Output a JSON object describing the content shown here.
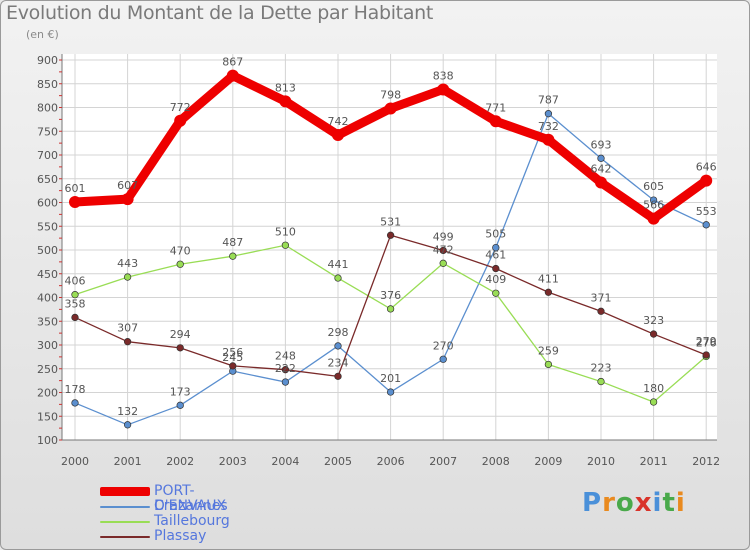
{
  "title": "Evolution du Montant de la Dette par Habitant",
  "subtitle": "(en €)",
  "logo_text": "Proxiti",
  "colors": {
    "port_denvaux": "#ee0000",
    "crazannes": "#5b8fcf",
    "taillebourg": "#99dd55",
    "plassay": "#7a2a2a",
    "legend_text": "#5577dd"
  },
  "chart_data": {
    "type": "line",
    "title": "Evolution du Montant de la Dette par Habitant",
    "ylabel": "(en €)",
    "xlabel": "",
    "ylim": [
      100,
      900
    ],
    "grid": true,
    "categories": [
      "2000",
      "2001",
      "2002",
      "2003",
      "2004",
      "2005",
      "2006",
      "2007",
      "2008",
      "2009",
      "2010",
      "2011",
      "2012"
    ],
    "y_ticks": [
      "100",
      "150",
      "200",
      "250",
      "300",
      "350",
      "400",
      "450",
      "500",
      "550",
      "600",
      "650",
      "700",
      "750",
      "800",
      "850",
      "900"
    ],
    "series": [
      {
        "name": "PORT-D'ENVAUX",
        "values": [
          601,
          607,
          772,
          867,
          813,
          742,
          798,
          838,
          771,
          732,
          642,
          566,
          646
        ],
        "labels": [
          "601",
          "607",
          "772",
          "867",
          "813",
          "742",
          "798",
          "838",
          "771",
          "732",
          "642",
          "566",
          "646"
        ]
      },
      {
        "name": "Crazannes",
        "values": [
          178,
          132,
          173,
          245,
          222,
          298,
          201,
          270,
          505,
          787,
          693,
          605,
          553
        ],
        "labels": [
          "178",
          "132",
          "173",
          "245",
          "222",
          "298",
          "201",
          "270",
          "505",
          "787",
          "693",
          "605",
          "553"
        ]
      },
      {
        "name": "Taillebourg",
        "values": [
          406,
          443,
          470,
          487,
          510,
          441,
          376,
          472,
          409,
          259,
          223,
          180,
          276
        ],
        "labels": [
          "406",
          "443",
          "470",
          "487",
          "510",
          "441",
          "376",
          "472",
          "409",
          "259",
          "223",
          "180",
          "276"
        ]
      },
      {
        "name": "Plassay",
        "values": [
          358,
          307,
          294,
          256,
          248,
          234,
          531,
          499,
          461,
          411,
          371,
          323,
          279
        ],
        "labels": [
          "358",
          "307",
          "294",
          "256",
          "248",
          "234",
          "531",
          "499",
          "461",
          "411",
          "371",
          "323",
          "279"
        ]
      }
    ]
  }
}
